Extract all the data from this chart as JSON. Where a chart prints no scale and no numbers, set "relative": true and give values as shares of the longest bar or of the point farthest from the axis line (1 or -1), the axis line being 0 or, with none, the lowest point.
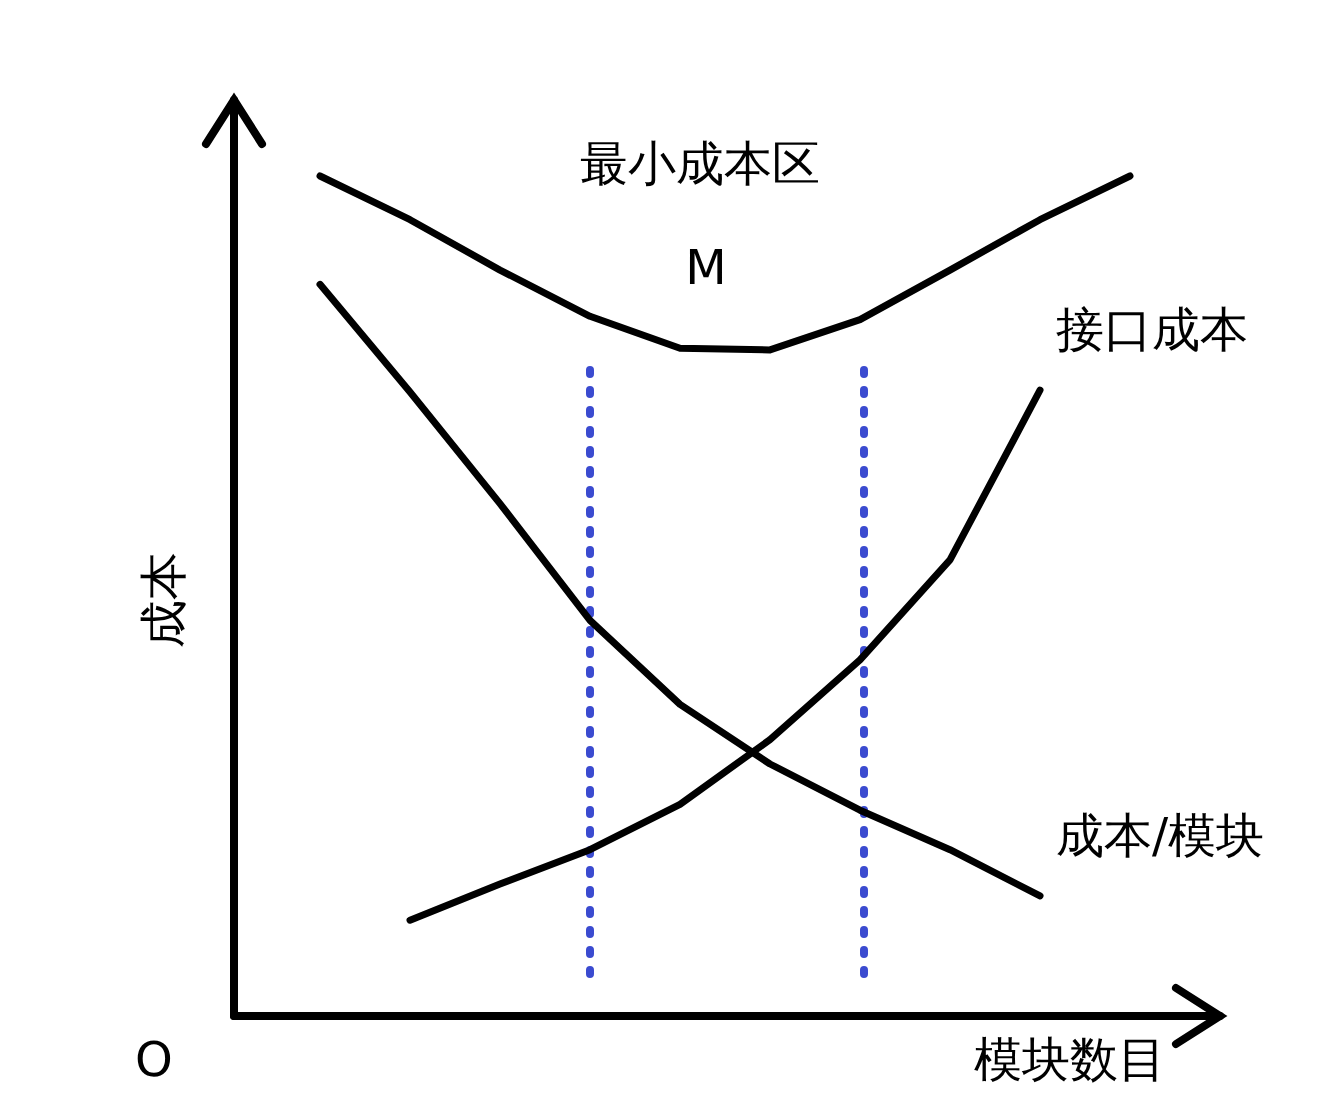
{
  "chart_data": {
    "type": "line",
    "relative": true,
    "ylabel": "成本",
    "xlabel": "模块数目",
    "categories": [
      null,
      null,
      null,
      null,
      null,
      null,
      null,
      null,
      null,
      null
    ],
    "series": [
      {
        "color": "#000000",
        "values": [
          1,
          0.948,
          0.888,
          0.833,
          0.795,
          0.793,
          0.829,
          0.888,
          0.948,
          1
        ]
      },
      {
        "name": "成本/模块",
        "color": "#000000",
        "values": [
          0.871,
          0.743,
          0.61,
          0.471,
          0.371,
          0.3,
          0.245,
          0.198,
          0.143,
          null
        ]
      },
      {
        "name": "接口成本",
        "color": "#000000",
        "values": [
          null,
          0.114,
          0.157,
          0.198,
          0.252,
          0.329,
          0.424,
          0.543,
          0.745,
          null
        ]
      }
    ],
    "annotations": [
      "最小成本区",
      "M",
      "O"
    ],
    "marker": "none",
    "line_style": "solid"
  }
}
